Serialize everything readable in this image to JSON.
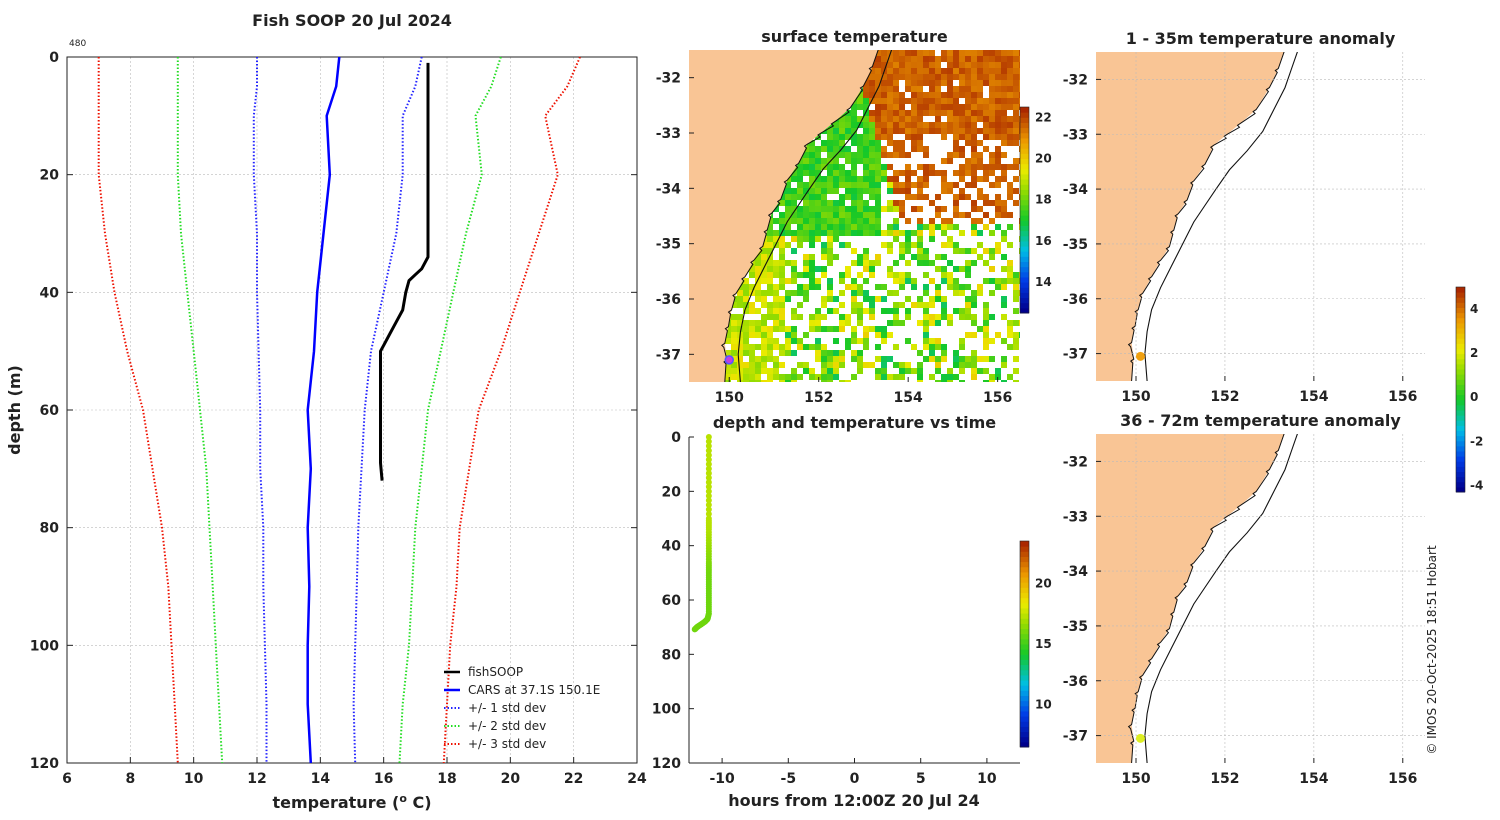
{
  "colors": {
    "fishsoop": "#000000",
    "cars": "#0000ff",
    "std1": "#2222ff",
    "std2": "#22dd22",
    "std3": "#ee1100",
    "land": "#f9c595",
    "grid": "#bbbbbb",
    "coast": "#111111",
    "marker": "#c040e0",
    "anom_marker": "#f0a010",
    "anom_marker2": "#ddee22"
  },
  "watermark": "© IMOS 20-Oct-2025 18:51 Hobart",
  "chart_data": [
    {
      "id": "profile",
      "type": "line",
      "title": "Fish SOOP 20 Jul 2024",
      "corner_label": "480",
      "xlabel": "temperature (",
      "xlabel_sup": "o",
      "xlabel_end": " C)",
      "ylabel": "depth (m)",
      "xlim": [
        6,
        24
      ],
      "ylim": [
        120,
        0
      ],
      "x_ticks": [
        "6",
        "8",
        "10",
        "12",
        "14",
        "16",
        "18",
        "20",
        "22",
        "24"
      ],
      "y_ticks": [
        "0",
        "20",
        "40",
        "60",
        "80",
        "100",
        "120"
      ],
      "legend": [
        "fishSOOP",
        "CARS at 37.1S 150.1E",
        "+/- 1 std dev",
        "+/- 2 std dev",
        "+/- 3 std dev"
      ],
      "series": [
        {
          "name": "fishSOOP",
          "style": "solid",
          "color": "fishsoop",
          "width": 3,
          "points": [
            [
              17.4,
              1
            ],
            [
              17.4,
              10
            ],
            [
              17.4,
              20
            ],
            [
              17.4,
              30
            ],
            [
              17.4,
              34
            ],
            [
              17.2,
              36
            ],
            [
              17.0,
              37
            ],
            [
              16.8,
              38
            ],
            [
              16.7,
              40
            ],
            [
              16.6,
              43
            ],
            [
              16.4,
              45
            ],
            [
              16.3,
              46
            ],
            [
              16.2,
              47
            ],
            [
              16.0,
              49
            ],
            [
              15.9,
              50
            ],
            [
              15.9,
              55
            ],
            [
              15.9,
              60
            ],
            [
              15.9,
              65
            ],
            [
              15.9,
              69
            ],
            [
              15.95,
              72
            ]
          ]
        },
        {
          "name": "CARS at 37.1S 150.1E",
          "style": "solid",
          "color": "cars",
          "width": 2.5,
          "points": [
            [
              14.6,
              0
            ],
            [
              14.5,
              5
            ],
            [
              14.2,
              10
            ],
            [
              14.3,
              20
            ],
            [
              14.1,
              30
            ],
            [
              13.9,
              40
            ],
            [
              13.8,
              50
            ],
            [
              13.6,
              60
            ],
            [
              13.7,
              70
            ],
            [
              13.6,
              80
            ],
            [
              13.65,
              90
            ],
            [
              13.6,
              100
            ],
            [
              13.6,
              110
            ],
            [
              13.7,
              120
            ]
          ]
        },
        {
          "name": "+1 std",
          "style": "dotted",
          "color": "std1",
          "width": 2,
          "points": [
            [
              17.2,
              0
            ],
            [
              17.0,
              5
            ],
            [
              16.6,
              10
            ],
            [
              16.6,
              20
            ],
            [
              16.4,
              30
            ],
            [
              16.0,
              40
            ],
            [
              15.6,
              50
            ],
            [
              15.4,
              60
            ],
            [
              15.3,
              70
            ],
            [
              15.2,
              80
            ],
            [
              15.15,
              90
            ],
            [
              15.1,
              100
            ],
            [
              15.05,
              110
            ],
            [
              15.1,
              120
            ]
          ]
        },
        {
          "name": "-1 std",
          "style": "dotted",
          "color": "std1",
          "width": 2,
          "points": [
            [
              12.0,
              0
            ],
            [
              12.0,
              5
            ],
            [
              11.9,
              10
            ],
            [
              11.9,
              20
            ],
            [
              12.0,
              30
            ],
            [
              12.0,
              40
            ],
            [
              12.05,
              50
            ],
            [
              12.1,
              60
            ],
            [
              12.1,
              70
            ],
            [
              12.2,
              80
            ],
            [
              12.2,
              90
            ],
            [
              12.25,
              100
            ],
            [
              12.3,
              110
            ],
            [
              12.3,
              120
            ]
          ]
        },
        {
          "name": "+2 std",
          "style": "dotted",
          "color": "std2",
          "width": 2,
          "points": [
            [
              19.7,
              0
            ],
            [
              19.4,
              5
            ],
            [
              18.9,
              10
            ],
            [
              19.1,
              20
            ],
            [
              18.6,
              30
            ],
            [
              18.2,
              40
            ],
            [
              17.8,
              50
            ],
            [
              17.4,
              60
            ],
            [
              17.2,
              70
            ],
            [
              17.0,
              80
            ],
            [
              16.9,
              90
            ],
            [
              16.8,
              100
            ],
            [
              16.6,
              110
            ],
            [
              16.5,
              120
            ]
          ]
        },
        {
          "name": "-2 std",
          "style": "dotted",
          "color": "std2",
          "width": 2,
          "points": [
            [
              9.5,
              0
            ],
            [
              9.5,
              5
            ],
            [
              9.5,
              10
            ],
            [
              9.5,
              20
            ],
            [
              9.6,
              30
            ],
            [
              9.8,
              40
            ],
            [
              10.0,
              50
            ],
            [
              10.2,
              60
            ],
            [
              10.4,
              70
            ],
            [
              10.5,
              80
            ],
            [
              10.6,
              90
            ],
            [
              10.7,
              100
            ],
            [
              10.8,
              110
            ],
            [
              10.9,
              120
            ]
          ]
        },
        {
          "name": "+3 std",
          "style": "dotted",
          "color": "std3",
          "width": 2,
          "points": [
            [
              22.2,
              0
            ],
            [
              21.8,
              5
            ],
            [
              21.1,
              10
            ],
            [
              21.5,
              20
            ],
            [
              20.9,
              30
            ],
            [
              20.3,
              40
            ],
            [
              19.7,
              50
            ],
            [
              19.0,
              60
            ],
            [
              18.7,
              70
            ],
            [
              18.4,
              80
            ],
            [
              18.3,
              90
            ],
            [
              18.1,
              100
            ],
            [
              18.0,
              110
            ],
            [
              17.9,
              120
            ]
          ]
        },
        {
          "name": "-3 std",
          "style": "dotted",
          "color": "std3",
          "width": 2,
          "points": [
            [
              7.0,
              0
            ],
            [
              7.0,
              5
            ],
            [
              7.0,
              10
            ],
            [
              7.0,
              20
            ],
            [
              7.2,
              30
            ],
            [
              7.5,
              40
            ],
            [
              7.9,
              50
            ],
            [
              8.4,
              60
            ],
            [
              8.7,
              70
            ],
            [
              9.0,
              80
            ],
            [
              9.2,
              90
            ],
            [
              9.3,
              100
            ],
            [
              9.4,
              110
            ],
            [
              9.5,
              120
            ]
          ]
        }
      ]
    },
    {
      "id": "sst",
      "type": "heatmap",
      "title": "surface temperature",
      "xlim": [
        149.1,
        156.5
      ],
      "ylim": [
        -37.5,
        -31.5
      ],
      "x_ticks": [
        "150",
        "152",
        "154",
        "156"
      ],
      "y_ticks": [
        "-32",
        "-33",
        "-34",
        "-35",
        "-36",
        "-37"
      ],
      "colorbar": {
        "range": [
          12.5,
          22.5
        ],
        "ticks": [
          "14",
          "16",
          "18",
          "20",
          "22"
        ]
      },
      "marker": {
        "lon": 150.0,
        "lat": -37.1
      }
    },
    {
      "id": "time_depth",
      "type": "scatter",
      "title": "depth and temperature vs time",
      "xlabel": "hours from 12:00Z 20 Jul 24",
      "xlim": [
        -12.5,
        12.5
      ],
      "ylim": [
        120,
        0
      ],
      "x_ticks": [
        "-10",
        "-5",
        "0",
        "5",
        "10"
      ],
      "y_ticks": [
        "0",
        "20",
        "40",
        "60",
        "80",
        "100",
        "120"
      ],
      "colorbar": {
        "range": [
          6.5,
          23.5
        ],
        "ticks": [
          "10",
          "15",
          "20"
        ]
      },
      "points": [
        [
          -11.0,
          0,
          17.4
        ],
        [
          -11.0,
          10,
          17.4
        ],
        [
          -11.0,
          20,
          17.4
        ],
        [
          -11.0,
          30,
          17.4
        ],
        [
          -11.0,
          34,
          17.3
        ],
        [
          -11.0,
          40,
          16.8
        ],
        [
          -11.0,
          46,
          16.3
        ],
        [
          -11.0,
          50,
          16.0
        ],
        [
          -11.0,
          55,
          15.9
        ],
        [
          -11.0,
          60,
          15.9
        ],
        [
          -11.0,
          65,
          15.9
        ],
        [
          -11.1,
          67,
          15.9
        ],
        [
          -11.3,
          68,
          15.9
        ],
        [
          -11.6,
          69,
          15.9
        ],
        [
          -11.9,
          70,
          15.95
        ],
        [
          -12.1,
          71,
          15.95
        ]
      ]
    },
    {
      "id": "anom_1_35",
      "type": "heatmap",
      "title": "1 - 35m temperature anomaly",
      "xlim": [
        149.1,
        156.5
      ],
      "ylim": [
        -37.5,
        -31.5
      ],
      "x_ticks": [
        "150",
        "152",
        "154",
        "156"
      ],
      "y_ticks": [
        "-32",
        "-33",
        "-34",
        "-35",
        "-36",
        "-37"
      ],
      "marker": {
        "lon": 150.1,
        "lat": -37.05
      }
    },
    {
      "id": "anom_36_72",
      "type": "heatmap",
      "title": "36 - 72m temperature anomaly",
      "xlim": [
        149.1,
        156.5
      ],
      "ylim": [
        -37.5,
        -31.5
      ],
      "x_ticks": [
        "150",
        "152",
        "154",
        "156"
      ],
      "y_ticks": [
        "-32",
        "-33",
        "-34",
        "-35",
        "-36",
        "-37"
      ],
      "marker": {
        "lon": 150.1,
        "lat": -37.05
      }
    },
    {
      "id": "anom_colorbar",
      "type": "heatmap",
      "range": [
        -4.3,
        5
      ],
      "ticks": [
        "4",
        "2",
        "0",
        "-2",
        "-4"
      ],
      "tick_values": [
        4,
        2,
        0,
        -2,
        -4
      ]
    }
  ]
}
